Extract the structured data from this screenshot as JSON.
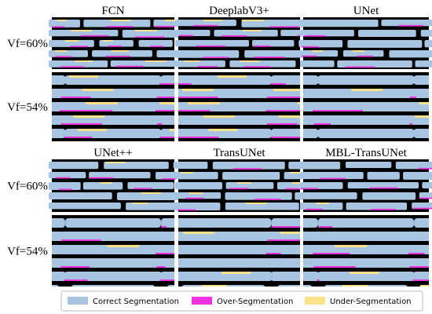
{
  "groups": [
    {
      "columns": [
        "FCN",
        "DeeplabV3+",
        "UNet"
      ],
      "rows": [
        "Vf=60%",
        "Vf=54%"
      ]
    },
    {
      "columns": [
        "UNet++",
        "TransUNet",
        "MBL-TransUNet"
      ],
      "rows": [
        "Vf=60%",
        "Vf=54%"
      ]
    }
  ],
  "legend": [
    "Correct Segmentation",
    "Over-Segmentation",
    "Under-Segmentation"
  ]
}
